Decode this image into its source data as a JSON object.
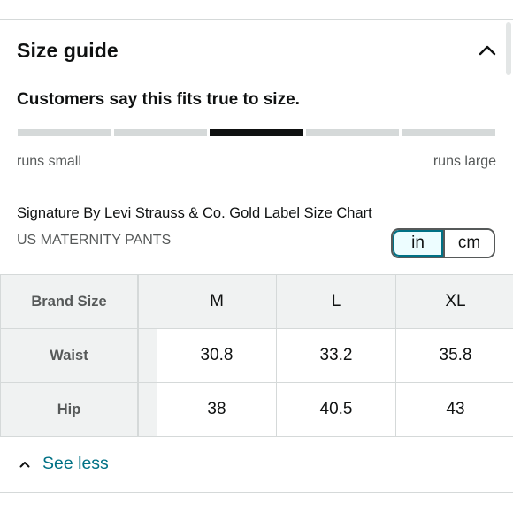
{
  "size_guide": {
    "title": "Size guide",
    "collapse_icon": "chevron-up-icon"
  },
  "fit": {
    "statement": "Customers say this fits true to size.",
    "segments": 5,
    "active_segment": 3,
    "left_label": "runs small",
    "right_label": "runs large"
  },
  "chart": {
    "title": "Signature By Levi Strauss & Co. Gold Label Size Chart",
    "subtitle": "US MATERNITY PANTS"
  },
  "unit_toggle": {
    "options": [
      "in",
      "cm"
    ],
    "selected": "in",
    "accent_color": "#007185"
  },
  "table": {
    "header": {
      "label": "Brand Size",
      "sizes": [
        "M",
        "L",
        "XL"
      ]
    },
    "rows": [
      {
        "label": "Waist",
        "values": [
          "30.8",
          "33.2",
          "35.8"
        ]
      },
      {
        "label": "Hip",
        "values": [
          "38",
          "40.5",
          "43"
        ]
      }
    ]
  },
  "see_less": {
    "label": "See less",
    "icon": "chevron-up-icon",
    "color": "#007185"
  }
}
